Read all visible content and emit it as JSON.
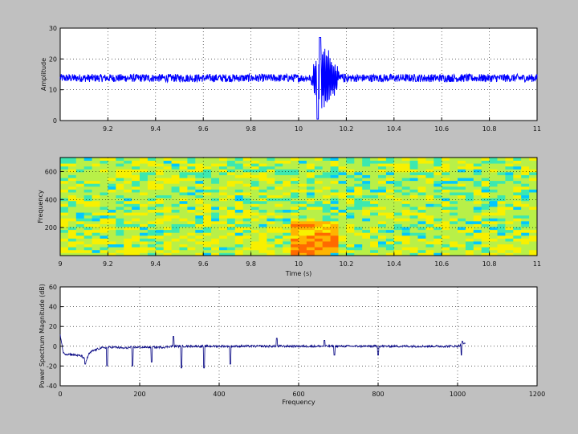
{
  "chart_data": [
    {
      "type": "line",
      "title": "",
      "xlabel": "",
      "ylabel": "Amplitude",
      "xlim": [
        9,
        11
      ],
      "ylim": [
        0,
        30
      ],
      "grid": true,
      "x_ticks": [
        "9.2",
        "9.4",
        "9.6",
        "9.8",
        "10",
        "10.2",
        "10.4",
        "10.6",
        "10.8",
        "11"
      ],
      "y_ticks": [
        "0",
        "10",
        "20",
        "30"
      ],
      "series_color": "#0000ff",
      "baseline": 13.8,
      "noise_amplitude": 1.3,
      "event": {
        "start": 10.05,
        "end": 10.2,
        "peak_max": 27,
        "trough_min": 0.5
      }
    },
    {
      "type": "heatmap",
      "title": "",
      "xlabel": "Time (s)",
      "ylabel": "Frequency",
      "xlim": [
        9,
        11
      ],
      "ylim": [
        0,
        700
      ],
      "grid": true,
      "x_ticks": [
        "9",
        "9.2",
        "9.4",
        "9.6",
        "9.8",
        "10",
        "10.2",
        "10.4",
        "10.6",
        "10.8",
        "11"
      ],
      "y_ticks": [
        "200",
        "400",
        "600"
      ],
      "colormap": [
        "#00c8ff",
        "#3ce8b0",
        "#b8f048",
        "#f8f000",
        "#ffb400",
        "#ff6a00"
      ],
      "hot_region": {
        "time_start": 9.97,
        "time_end": 10.15,
        "freq_max": 250
      }
    },
    {
      "type": "line",
      "title": "",
      "xlabel": "Frequency",
      "ylabel": "Power Spectrum Magnitude (dB)",
      "xlim": [
        0,
        1200
      ],
      "ylim": [
        -40,
        60
      ],
      "grid": true,
      "x_ticks": [
        "0",
        "200",
        "400",
        "600",
        "800",
        "1000",
        "1200"
      ],
      "y_ticks": [
        "-40",
        "-20",
        "0",
        "20",
        "40",
        "60"
      ],
      "series_color": "#000080",
      "x": [
        0,
        8,
        15,
        25,
        40,
        55,
        65,
        72,
        80,
        100,
        120,
        140,
        160,
        180,
        200,
        220,
        240,
        260,
        280,
        300,
        350,
        400,
        450,
        500,
        550,
        600,
        650,
        700,
        750,
        800,
        850,
        900,
        950,
        1000,
        1020
      ],
      "values": [
        12,
        -7,
        -8,
        -8,
        -9,
        -10,
        -15,
        -8,
        -5,
        -2,
        -1,
        -1,
        -2,
        -1,
        -1,
        -1,
        -1,
        -1,
        0,
        0,
        0,
        0,
        0,
        0,
        0,
        0,
        0,
        0,
        0,
        0,
        0,
        0,
        0,
        0,
        3
      ],
      "dips": [
        [
          63,
          -18
        ],
        [
          118,
          -20
        ],
        [
          182,
          -20
        ],
        [
          230,
          -16
        ],
        [
          305,
          -22
        ],
        [
          362,
          -22
        ],
        [
          428,
          -18
        ],
        [
          690,
          -9
        ],
        [
          800,
          -9
        ],
        [
          1010,
          -9
        ]
      ],
      "spikes": [
        [
          285,
          10
        ],
        [
          545,
          8
        ],
        [
          665,
          6
        ],
        [
          1012,
          5
        ]
      ]
    }
  ]
}
